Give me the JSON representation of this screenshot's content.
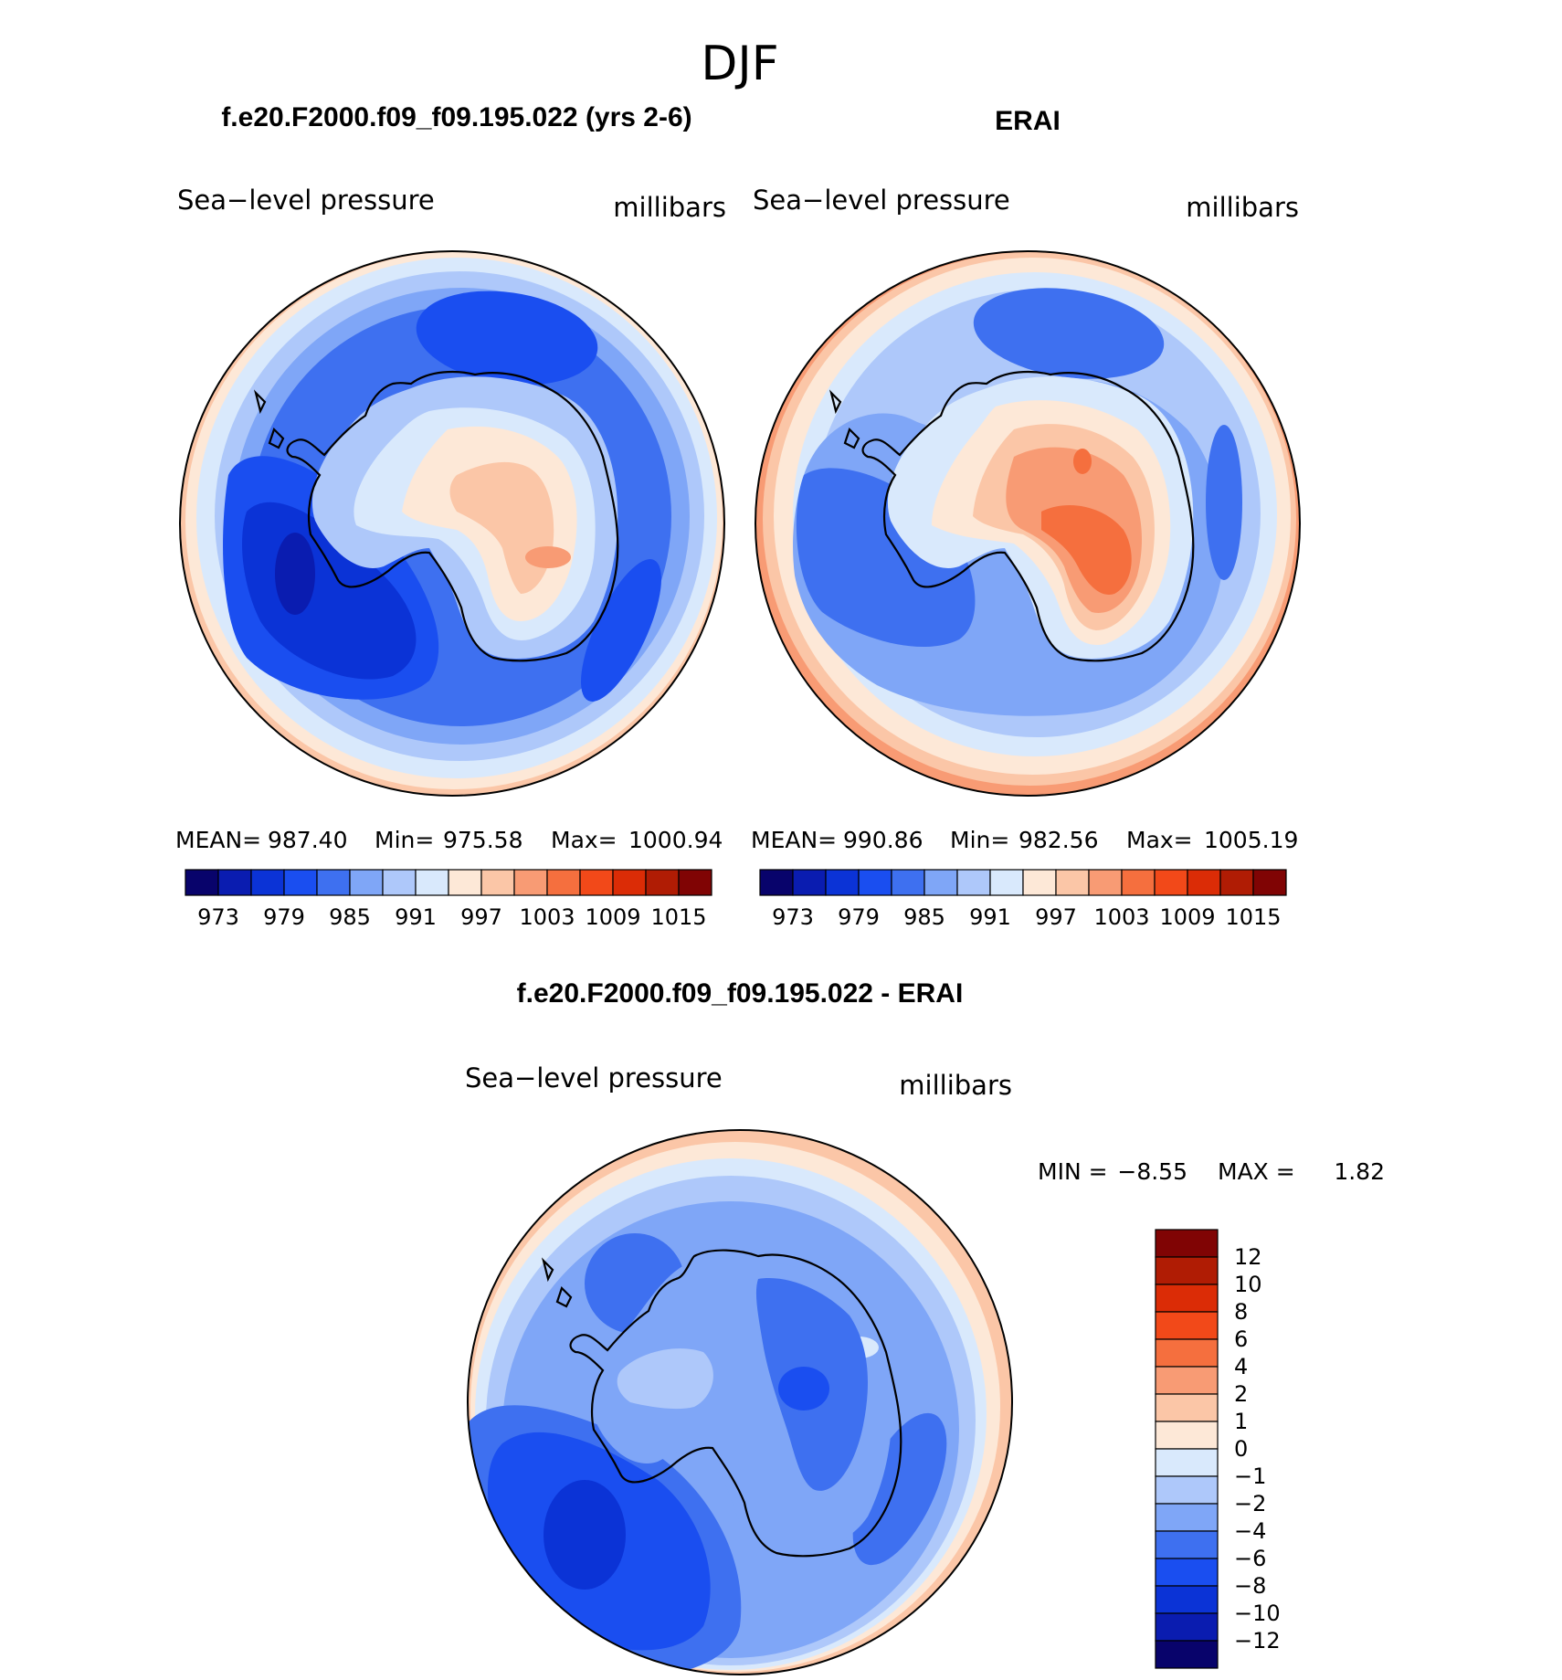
{
  "figure_title": "DJF",
  "panels": [
    {
      "title": "f.e20.F2000.f09_f09.195.022 (yrs 2-6)",
      "left_label": "Sea−level pressure",
      "right_label": "millibars",
      "stats": {
        "mean_label": "MEAN=",
        "mean": "987.40",
        "min_label": "Min=",
        "min": "975.58",
        "max_label": "Max=",
        "max": "1000.94"
      }
    },
    {
      "title": "ERAI",
      "left_label": "Sea−level pressure",
      "right_label": "millibars",
      "stats": {
        "mean_label": "MEAN=",
        "mean": "990.86",
        "min_label": "Min=",
        "min": "982.56",
        "max_label": "Max=",
        "max": "1005.19"
      }
    },
    {
      "title": "f.e20.F2000.f09_f09.195.022 - ERAI",
      "left_label": "Sea−level pressure",
      "right_label": "millibars",
      "stats": {
        "min_label": "MIN =",
        "min": "−8.55",
        "max_label": "MAX =",
        "max": "1.82"
      }
    }
  ],
  "colorbar_top": {
    "colors": [
      "#08036b",
      "#0a1cb0",
      "#0b33d6",
      "#1a4ef0",
      "#3e70f0",
      "#7fa6f7",
      "#aec8fa",
      "#d9e9fc",
      "#fde8d7",
      "#fbc6a7",
      "#f89b74",
      "#f56f3e",
      "#f24919",
      "#db2c06",
      "#b01c04",
      "#800404"
    ],
    "tick_labels": [
      "973",
      "979",
      "985",
      "991",
      "997",
      "1003",
      "1009",
      "1015"
    ]
  },
  "colorbar_diff": {
    "colors": [
      "#800404",
      "#b01c04",
      "#db2c06",
      "#f24919",
      "#f56f3e",
      "#f89b74",
      "#fbc6a7",
      "#fde8d7",
      "#d9e9fc",
      "#aec8fa",
      "#7fa6f7",
      "#3e70f0",
      "#1a4ef0",
      "#0b33d6",
      "#0a1cb0",
      "#08036b"
    ],
    "tick_labels": [
      "12",
      "10",
      "8",
      "6",
      "4",
      "2",
      "1",
      "0",
      "−1",
      "−2",
      "−4",
      "−6",
      "−8",
      "−10",
      "−12"
    ]
  },
  "maps": [
    {
      "bands": [
        "#fbc6a7",
        "#fde8d7",
        "#d9e9fc",
        "#aec8fa",
        "#7fa6f7",
        "#3e70f0"
      ],
      "interior": "#3e70f0"
    },
    {
      "bands": [
        "#f89b74",
        "#fbc6a7",
        "#fde8d7",
        "#d9e9fc",
        "#aec8fa",
        "#7fa6f7"
      ],
      "interior": "#7fa6f7"
    },
    {
      "bands": [
        "#fbc6a7",
        "#fde8d7",
        "#d9e9fc",
        "#aec8fa",
        "#7fa6f7"
      ],
      "interior": "#7fa6f7"
    }
  ]
}
